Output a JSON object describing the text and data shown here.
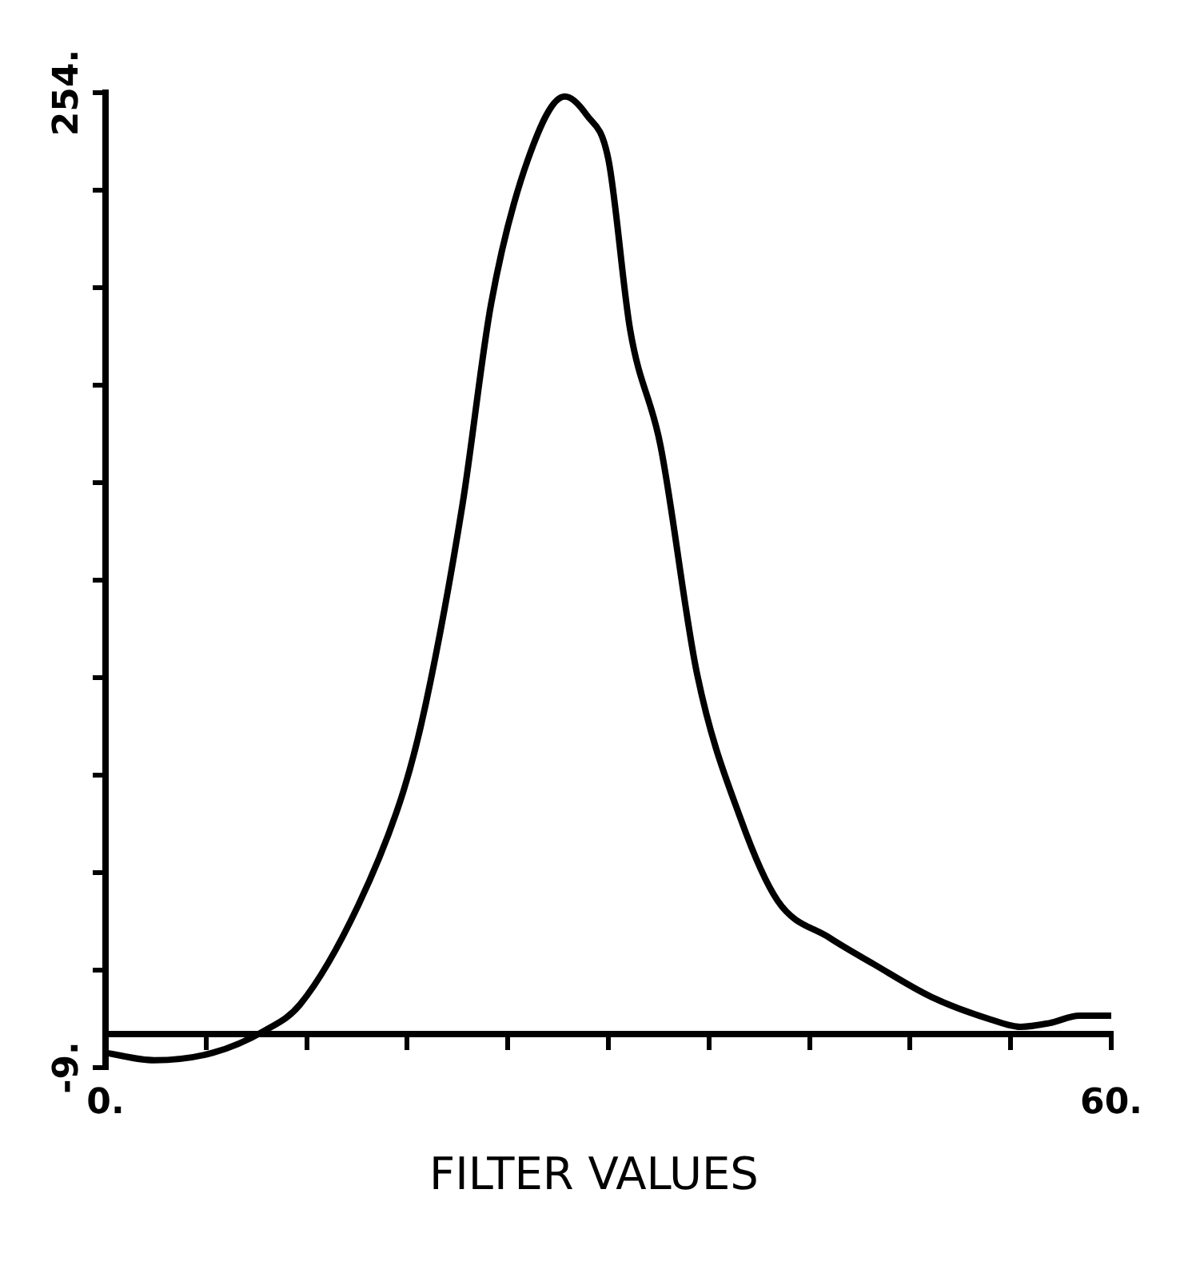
{
  "chart_data": {
    "type": "line",
    "xlabel": "FILTER VALUES",
    "x": [
      0,
      2.9,
      6.4,
      9.5,
      11.6,
      15.1,
      17.8,
      19.1,
      21.3,
      23.0,
      25.2,
      27.4,
      28.7,
      30.0,
      31.3,
      33.1,
      35.3,
      37.9,
      40.1,
      43.2,
      45.8,
      49.3,
      52.8,
      54.6,
      56.3,
      58.1,
      60
    ],
    "series": [
      {
        "color": "#000000",
        "values": [
          -5,
          -7,
          -5,
          1,
          8,
          35,
          66,
          89,
          143,
          197,
          236,
          253,
          248,
          236,
          190,
          159,
          97,
          58,
          36,
          26,
          19,
          10,
          4,
          2,
          3,
          5,
          5
        ]
      }
    ],
    "xlim": [
      0,
      60
    ],
    "ylim": [
      -9,
      254
    ],
    "xticks": [
      {
        "value": 0,
        "label": "0."
      },
      {
        "value": 6,
        "label": null
      },
      {
        "value": 12,
        "label": null
      },
      {
        "value": 18,
        "label": null
      },
      {
        "value": 24,
        "label": null
      },
      {
        "value": 30,
        "label": null
      },
      {
        "value": 36,
        "label": null
      },
      {
        "value": 42,
        "label": null
      },
      {
        "value": 48,
        "label": null
      },
      {
        "value": 54,
        "label": null
      },
      {
        "value": 60,
        "label": "60."
      }
    ],
    "yticks": [
      {
        "value": -9,
        "label": "-9."
      },
      {
        "value": 17.3,
        "label": null
      },
      {
        "value": 43.6,
        "label": null
      },
      {
        "value": 69.9,
        "label": null
      },
      {
        "value": 96.2,
        "label": null
      },
      {
        "value": 122.5,
        "label": null
      },
      {
        "value": 148.8,
        "label": null
      },
      {
        "value": 175.1,
        "label": null
      },
      {
        "value": 201.4,
        "label": null
      },
      {
        "value": 227.7,
        "label": null
      },
      {
        "value": 254,
        "label": "254."
      }
    ],
    "grid": false,
    "legend": false,
    "marker": "none",
    "line_style": "solid"
  }
}
